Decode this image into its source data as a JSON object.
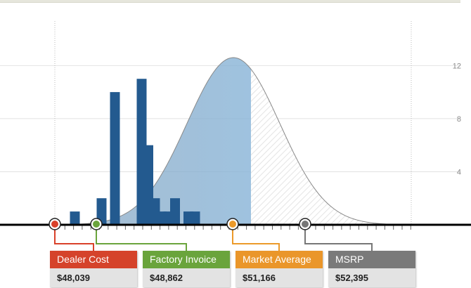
{
  "chart_data": {
    "type": "bar",
    "subtype": "histogram-with-bell-curve",
    "y_ticks": [
      4,
      8,
      12
    ],
    "ylim": [
      0,
      12.6
    ],
    "grid": true,
    "bins": [
      {
        "x": 48500,
        "value": 1
      },
      {
        "x": 48900,
        "value": 2
      },
      {
        "x": 49100,
        "value": 10
      },
      {
        "x": 49500,
        "value": 11
      },
      {
        "x": 49600,
        "value": 6
      },
      {
        "x": 49700,
        "value": 2
      },
      {
        "x": 49800,
        "value": 1
      },
      {
        "x": 49900,
        "value": 1
      },
      {
        "x": 50000,
        "value": 2
      },
      {
        "x": 50200,
        "value": 1
      },
      {
        "x": 50300,
        "value": 1
      }
    ],
    "markers": [
      {
        "label": "Dealer Cost",
        "value_text": "$48,039",
        "color": "#d9412a",
        "dot_color": "#d9412a"
      },
      {
        "label": "Factory Invoice",
        "value_text": "$48,862",
        "color": "#6aa43c",
        "dot_color": "#6aa43c"
      },
      {
        "label": "Market Average",
        "value_text": "$51,166",
        "color": "#ec9a2a",
        "dot_color": "#ec9a2a"
      },
      {
        "label": "MSRP",
        "value_text": "$52,395",
        "color": "#777777",
        "dot_color": "#777777"
      }
    ]
  },
  "colors": {
    "bar": "#235a8f",
    "curve_fill_left": "#a9cde8",
    "curve_stroke": "#888888",
    "grid": "#e2e2e2",
    "axis": "#000000"
  }
}
